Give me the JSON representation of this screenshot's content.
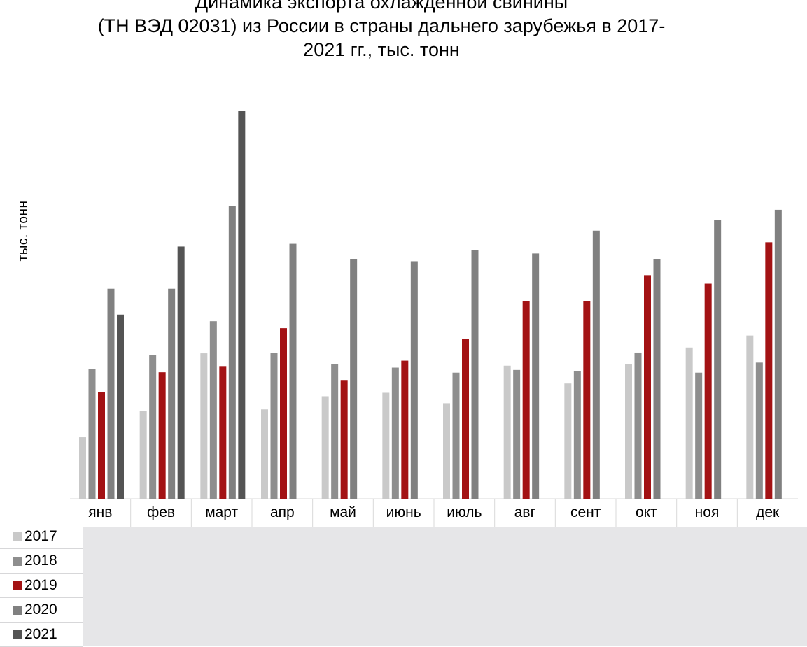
{
  "chart_data": {
    "type": "bar",
    "title_lines": [
      "Динамика экспорта охлажденной свинины",
      "(ТН ВЭД 02031) из России в страны дальнего зарубежья в 2017-",
      "2021 гг., тыс. тонн"
    ],
    "ylabel": "тыс. тонн",
    "xlabel": "",
    "categories": [
      "янв",
      "фев",
      "март",
      "апр",
      "май",
      "июнь",
      "июль",
      "авг",
      "сент",
      "окт",
      "ноя",
      "дек"
    ],
    "ylim": [
      0,
      100
    ],
    "grid": false,
    "legend_position": "bottom-left",
    "series": [
      {
        "name": "2017",
        "color": "#c9c9c9",
        "values": [
          15.9,
          22.7,
          37.6,
          23.1,
          26.5,
          27.4,
          24.7,
          34.4,
          29.8,
          34.8,
          39.1,
          42.2
        ]
      },
      {
        "name": "2018",
        "color": "#8e8e8e",
        "values": [
          33.6,
          37.2,
          45.9,
          37.7,
          34.9,
          33.9,
          32.6,
          33.3,
          33.0,
          37.8,
          32.6,
          35.2
        ]
      },
      {
        "name": "2019",
        "color": "#a31214",
        "values": [
          27.5,
          32.7,
          34.3,
          44.1,
          30.7,
          35.7,
          41.4,
          51.0,
          51.0,
          57.8,
          55.6,
          66.3
        ]
      },
      {
        "name": "2020",
        "color": "#808080",
        "values": [
          54.3,
          54.3,
          75.7,
          65.9,
          61.9,
          61.4,
          64.3,
          63.4,
          69.3,
          62.0,
          72.0,
          74.7
        ]
      },
      {
        "name": "2021",
        "color": "#545454",
        "values": [
          47.6,
          65.2,
          100.2,
          null,
          null,
          null,
          null,
          null,
          null,
          null,
          null,
          null
        ]
      }
    ]
  }
}
